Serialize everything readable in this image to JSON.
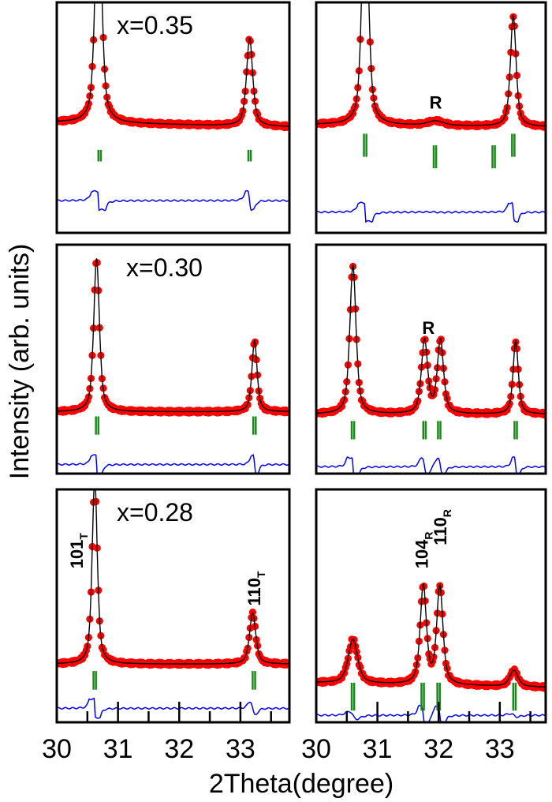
{
  "chart_data": [
    {
      "type": "line",
      "panel": "top-left",
      "label": "x=0.35",
      "xlim": [
        30,
        33.8
      ],
      "ylim": [
        0,
        100
      ],
      "background": [
        48,
        46
      ],
      "peaks": [
        {
          "pos": 30.68,
          "height": 110,
          "hwhm": 0.06
        },
        {
          "pos": 33.15,
          "height": 38,
          "hwhm": 0.06
        }
      ],
      "bragg_ticks": [
        {
          "pos": [
            30.68,
            30.72
          ],
          "y": [
            36,
            31
          ]
        },
        {
          "pos": [
            33.13,
            33.17
          ],
          "y": [
            36,
            31
          ]
        }
      ],
      "difference_level": 14,
      "annotations": []
    },
    {
      "type": "line",
      "panel": "top-right",
      "label": "",
      "xlim": [
        30,
        33.75
      ],
      "ylim": [
        0,
        100
      ],
      "background": [
        47,
        46
      ],
      "peaks": [
        {
          "pos": 30.8,
          "height": 110,
          "hwhm": 0.06
        },
        {
          "pos": 31.95,
          "height": 2,
          "hwhm": 0.15
        },
        {
          "pos": 33.22,
          "height": 48,
          "hwhm": 0.055
        }
      ],
      "bragg_ticks": [
        {
          "pos": [
            30.78,
            30.82
          ],
          "y": [
            43,
            33
          ]
        },
        {
          "pos": [
            31.92,
            31.96
          ],
          "y": [
            38,
            28
          ]
        },
        {
          "pos": [
            32.88,
            32.92
          ],
          "y": [
            38,
            28
          ]
        },
        {
          "pos": [
            33.2,
            33.24
          ],
          "y": [
            43,
            33
          ]
        }
      ],
      "difference_level": 9,
      "annotations": [
        {
          "text": "R",
          "sub": "",
          "x": 31.98,
          "y": 54,
          "rotate": false
        }
      ]
    },
    {
      "type": "line",
      "panel": "middle-left",
      "label": "x=0.30",
      "xlim": [
        30,
        33.8
      ],
      "ylim": [
        0,
        100
      ],
      "background": [
        27,
        27
      ],
      "peaks": [
        {
          "pos": 30.65,
          "height": 67,
          "hwhm": 0.055
        },
        {
          "pos": 33.23,
          "height": 31,
          "hwhm": 0.05
        }
      ],
      "bragg_ticks": [
        {
          "pos": [
            30.64,
            30.68
          ],
          "y": [
            25,
            17
          ]
        },
        {
          "pos": [
            33.21,
            33.25
          ],
          "y": [
            25,
            17
          ]
        }
      ],
      "difference_level": 4,
      "annotations": []
    },
    {
      "type": "line",
      "panel": "middle-right",
      "label": "",
      "xlim": [
        30,
        33.75
      ],
      "ylim": [
        0,
        100
      ],
      "background": [
        26,
        26
      ],
      "peaks": [
        {
          "pos": 30.6,
          "height": 65,
          "hwhm": 0.06
        },
        {
          "pos": 31.77,
          "height": 32,
          "hwhm": 0.06
        },
        {
          "pos": 32.03,
          "height": 32,
          "hwhm": 0.06
        },
        {
          "pos": 33.26,
          "height": 32,
          "hwhm": 0.05
        }
      ],
      "bragg_ticks": [
        {
          "pos": [
            30.58,
            30.62
          ],
          "y": [
            23,
            15
          ]
        },
        {
          "pos": [
            31.75,
            31.79
          ],
          "y": [
            23,
            15
          ]
        },
        {
          "pos": [
            31.99,
            32.03
          ],
          "y": [
            23,
            15
          ]
        },
        {
          "pos": [
            33.24,
            33.28
          ],
          "y": [
            23,
            15
          ]
        }
      ],
      "difference_level": 3,
      "annotations": [
        {
          "text": "R",
          "sub": "",
          "x": 31.86,
          "y": 61,
          "rotate": false
        }
      ]
    },
    {
      "type": "line",
      "panel": "bottom-left",
      "label": "x=0.28",
      "xlim": [
        30,
        33.8
      ],
      "ylim": [
        0,
        100
      ],
      "background": [
        25,
        25
      ],
      "peaks": [
        {
          "pos": 30.62,
          "height": 80,
          "hwhm": 0.05
        },
        {
          "pos": 33.2,
          "height": 22,
          "hwhm": 0.06
        }
      ],
      "bragg_ticks": [
        {
          "pos": [
            30.6,
            30.64
          ],
          "y": [
            22,
            14
          ]
        },
        {
          "pos": [
            33.2,
            33.24
          ],
          "y": [
            22,
            14
          ]
        }
      ],
      "difference_level": 6,
      "annotations": [
        {
          "text": "101",
          "sub": "T",
          "x": 30.32,
          "y": 66,
          "rotate": true
        },
        {
          "text": "110",
          "sub": "T",
          "x": 33.22,
          "y": 50,
          "rotate": true
        }
      ]
    },
    {
      "type": "line",
      "panel": "bottom-right",
      "label": "",
      "xlim": [
        30,
        33.75
      ],
      "ylim": [
        0,
        100
      ],
      "background": [
        17,
        15
      ],
      "peaks": [
        {
          "pos": 30.6,
          "height": 19,
          "hwhm": 0.09
        },
        {
          "pos": 31.75,
          "height": 42,
          "hwhm": 0.06
        },
        {
          "pos": 32.02,
          "height": 42,
          "hwhm": 0.06
        },
        {
          "pos": 33.23,
          "height": 7,
          "hwhm": 0.08
        }
      ],
      "bragg_ticks": [
        {
          "pos": [
            30.58,
            30.62
          ],
          "y": [
            17,
            5
          ]
        },
        {
          "pos": [
            31.72,
            31.76
          ],
          "y": [
            17,
            5
          ]
        },
        {
          "pos": [
            31.98,
            32.02
          ],
          "y": [
            17,
            5
          ]
        },
        {
          "pos": [
            33.22,
            33.26
          ],
          "y": [
            17,
            5
          ]
        }
      ],
      "difference_level": 3,
      "annotations": [
        {
          "text": "104",
          "sub": "R",
          "x": 31.72,
          "y": 66,
          "rotate": true
        },
        {
          "text": "110",
          "sub": "R",
          "x": 32.02,
          "y": 76,
          "rotate": true
        }
      ]
    }
  ],
  "x_axis": {
    "label": "2Theta(degree)",
    "ticks": [
      "30",
      "31",
      "32",
      "33"
    ],
    "tick_values": [
      30,
      31,
      32,
      33
    ]
  },
  "y_axis": {
    "label": "Intensity (arb. units)"
  },
  "colors": {
    "observed": "#ff0000",
    "calculated": "#000000",
    "bragg": "#1a8a1a",
    "difference": "#0000ff",
    "frame": "#000000"
  }
}
